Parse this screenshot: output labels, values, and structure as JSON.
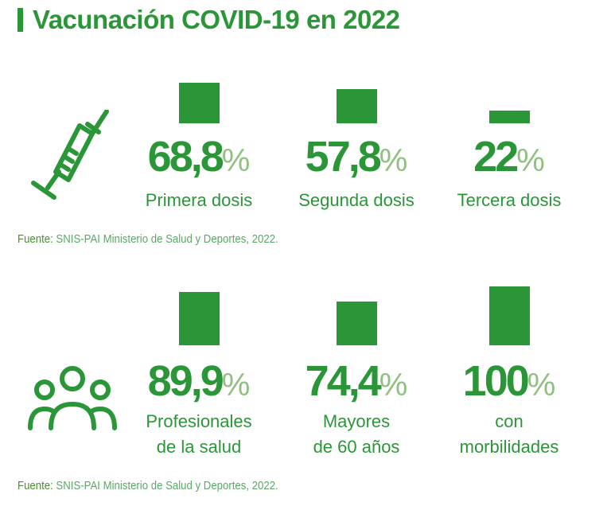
{
  "title": "Vacunación COVID-19 en 2022",
  "colors": {
    "primary": "#2a9638",
    "percent": "#8fc07f",
    "source": "#5aa865"
  },
  "icons": {
    "row1": "syringe-icon",
    "row2": "people-group-icon"
  },
  "percent_sign": "%",
  "rows": [
    {
      "items": [
        {
          "value": "68,8",
          "label": [
            "Primera dosis"
          ]
        },
        {
          "value": "57,8",
          "label": [
            "Segunda dosis"
          ]
        },
        {
          "value": "22",
          "label": [
            "Tercera dosis"
          ]
        }
      ],
      "source_label": "Fuente:",
      "source_text": " SNIS-PAI Ministerio de Salud y Deportes, 2022."
    },
    {
      "items": [
        {
          "value": "89,9",
          "label": [
            "Profesionales",
            "de la salud"
          ]
        },
        {
          "value": "74,4",
          "label": [
            "Mayores",
            "de 60 años"
          ]
        },
        {
          "value": "100",
          "label": [
            "con",
            "morbilidades"
          ]
        }
      ],
      "source_label": "Fuente:",
      "source_text": " SNIS-PAI Ministerio de Salud y Deportes, 2022."
    }
  ],
  "chart_data": [
    {
      "type": "bar",
      "categories": [
        "Primera dosis",
        "Segunda dosis",
        "Tercera dosis"
      ],
      "values": [
        68.8,
        57.8,
        22
      ],
      "ylim": [
        0,
        100
      ]
    },
    {
      "type": "bar",
      "categories": [
        "Profesionales de la salud",
        "Mayores de 60 años",
        "con morbilidades"
      ],
      "values": [
        89.9,
        74.4,
        100
      ],
      "ylim": [
        0,
        100
      ]
    }
  ]
}
